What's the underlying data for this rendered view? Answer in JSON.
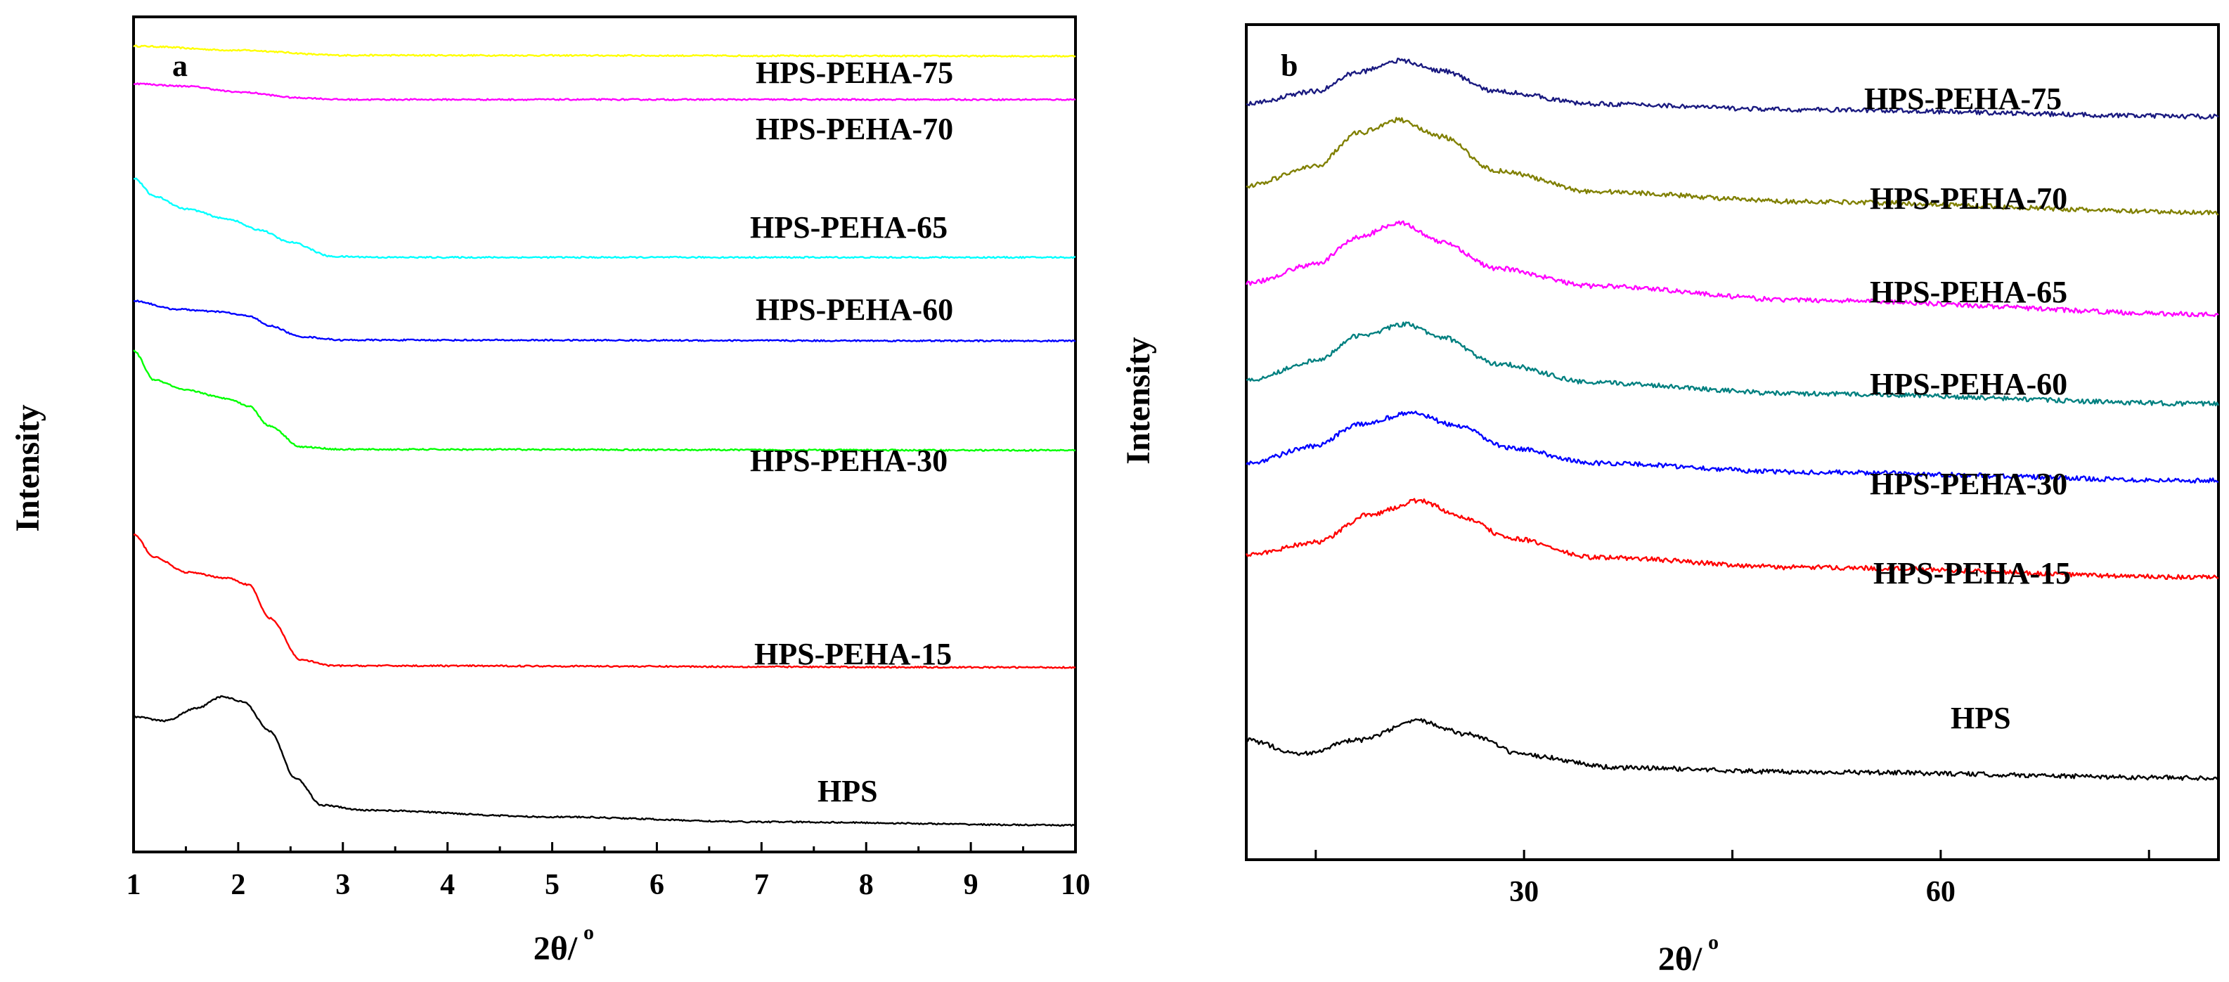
{
  "chart_data": [
    {
      "panel": "a",
      "type": "line",
      "title": "",
      "xlabel": "2θ/",
      "xlabel_sup": "o",
      "ylabel": "Intensity",
      "xlim": [
        1,
        10
      ],
      "x_ticks": [
        1,
        2,
        3,
        4,
        5,
        6,
        7,
        8,
        9,
        10
      ],
      "x_tick_labels": [
        "1",
        "2",
        "3",
        "4",
        "5",
        "6",
        "7",
        "8",
        "9",
        "10"
      ],
      "y_ticks_shown": false,
      "grid": false,
      "series": [
        {
          "name": "HPS-PEHA-75",
          "color": "#ffff00",
          "points": [
            [
              1,
              96.5
            ],
            [
              2,
              96
            ],
            [
              3,
              95.4
            ],
            [
              10,
              95.3
            ]
          ]
        },
        {
          "name": "HPS-PEHA-70",
          "color": "#ff00ff",
          "points": [
            [
              1,
              92
            ],
            [
              1.5,
              91.7
            ],
            [
              2,
              91
            ],
            [
              2.6,
              90.3
            ],
            [
              3,
              90.1
            ],
            [
              10,
              90.1
            ]
          ]
        },
        {
          "name": "HPS-PEHA-65",
          "color": "#00ffff",
          "points": [
            [
              1,
              80.7
            ],
            [
              1.2,
              78.5
            ],
            [
              1.5,
              77
            ],
            [
              1.9,
              75.8
            ],
            [
              2.2,
              74.5
            ],
            [
              2.5,
              73
            ],
            [
              2.9,
              71.3
            ],
            [
              3.5,
              71.2
            ],
            [
              10,
              71.2
            ]
          ]
        },
        {
          "name": "HPS-PEHA-60",
          "color": "#0000ff",
          "points": [
            [
              1,
              66
            ],
            [
              1.4,
              65
            ],
            [
              1.8,
              64.7
            ],
            [
              2.1,
              64.2
            ],
            [
              2.3,
              63
            ],
            [
              2.6,
              61.7
            ],
            [
              3,
              61.3
            ],
            [
              10,
              61.2
            ]
          ]
        },
        {
          "name": "HPS-PEHA-30",
          "color": "#00ff00",
          "points": [
            [
              1,
              60
            ],
            [
              1.2,
              56.5
            ],
            [
              1.5,
              55.3
            ],
            [
              1.9,
              54.3
            ],
            [
              2.1,
              53.4
            ],
            [
              2.3,
              51
            ],
            [
              2.6,
              48.5
            ],
            [
              3,
              48.2
            ],
            [
              10,
              48.1
            ]
          ]
        },
        {
          "name": "HPS-PEHA-15",
          "color": "#ff0000",
          "points": [
            [
              1,
              38
            ],
            [
              1.2,
              35.3
            ],
            [
              1.5,
              33.5
            ],
            [
              1.9,
              32.8
            ],
            [
              2.1,
              32
            ],
            [
              2.3,
              28
            ],
            [
              2.6,
              23
            ],
            [
              2.9,
              22.3
            ],
            [
              10,
              22.1
            ]
          ]
        },
        {
          "name": "HPS",
          "color": "#000000",
          "points": [
            [
              1,
              16.2
            ],
            [
              1.3,
              15.7
            ],
            [
              1.6,
              17.2
            ],
            [
              1.85,
              18.6
            ],
            [
              2.05,
              18
            ],
            [
              2.3,
              14.5
            ],
            [
              2.55,
              8.8
            ],
            [
              2.8,
              5.6
            ],
            [
              3.2,
              5
            ],
            [
              5,
              4.2
            ],
            [
              7,
              3.6
            ],
            [
              10,
              3.2
            ]
          ]
        }
      ],
      "series_labels": [
        "HPS-PEHA-75",
        "HPS-PEHA-70",
        "HPS-PEHA-65",
        "HPS-PEHA-60",
        "HPS-PEHA-30",
        "HPS-PEHA-15",
        "HPS"
      ]
    },
    {
      "panel": "b",
      "type": "line",
      "title": "",
      "xlabel": "2θ/",
      "xlabel_sup": "o",
      "ylabel": "Intensity",
      "xlim": [
        10,
        80
      ],
      "x_ticks": [
        15,
        30,
        45,
        60,
        75
      ],
      "x_tick_labels": [
        "",
        "30",
        "",
        "60",
        ""
      ],
      "y_ticks_shown": false,
      "grid": false,
      "series": [
        {
          "name": "HPS-PEHA-75",
          "color": "#1a1a80",
          "points": [
            [
              10,
              90.5
            ],
            [
              15,
              92
            ],
            [
              18,
              94.3
            ],
            [
              21,
              95.7
            ],
            [
              24,
              94.5
            ],
            [
              28,
              92
            ],
            [
              35,
              90.5
            ],
            [
              50,
              89.8
            ],
            [
              80,
              89
            ]
          ]
        },
        {
          "name": "HPS-PEHA-70",
          "color": "#808000",
          "points": [
            [
              10,
              80.7
            ],
            [
              15,
              83
            ],
            [
              18,
              87
            ],
            [
              21,
              88.6
            ],
            [
              24,
              86.6
            ],
            [
              28,
              82.5
            ],
            [
              35,
              80
            ],
            [
              50,
              78.8
            ],
            [
              80,
              77.5
            ]
          ]
        },
        {
          "name": "HPS-PEHA-65",
          "color": "#ff00ff",
          "points": [
            [
              10,
              69
            ],
            [
              15,
              71.3
            ],
            [
              18,
              74.5
            ],
            [
              21,
              76.3
            ],
            [
              24,
              74
            ],
            [
              28,
              70.8
            ],
            [
              35,
              68.7
            ],
            [
              50,
              67
            ],
            [
              80,
              65.3
            ]
          ]
        },
        {
          "name": "HPS-PEHA-60",
          "color": "#008080",
          "points": [
            [
              10,
              57.4
            ],
            [
              15,
              59.7
            ],
            [
              18,
              62.7
            ],
            [
              21.5,
              64.1
            ],
            [
              24,
              62.6
            ],
            [
              28,
              59.4
            ],
            [
              35,
              57.1
            ],
            [
              50,
              55.8
            ],
            [
              80,
              54.6
            ]
          ]
        },
        {
          "name": "HPS-PEHA-30",
          "color": "#0000ff",
          "points": [
            [
              10,
              47.5
            ],
            [
              15,
              49.5
            ],
            [
              18,
              52.1
            ],
            [
              22,
              53.5
            ],
            [
              25,
              52
            ],
            [
              29,
              49.3
            ],
            [
              35,
              47.5
            ],
            [
              50,
              46.4
            ],
            [
              80,
              45.4
            ]
          ]
        },
        {
          "name": "HPS-PEHA-15",
          "color": "#ff0000",
          "points": [
            [
              10,
              36.5
            ],
            [
              15,
              38
            ],
            [
              19,
              41.4
            ],
            [
              22.5,
              43
            ],
            [
              25.5,
              41
            ],
            [
              29,
              38.5
            ],
            [
              35,
              36.2
            ],
            [
              50,
              35
            ],
            [
              80,
              33.8
            ]
          ]
        },
        {
          "name": "HPS",
          "color": "#000000",
          "points": [
            [
              10,
              14.3
            ],
            [
              14,
              12.7
            ],
            [
              18,
              14.3
            ],
            [
              22.5,
              16.6
            ],
            [
              26,
              15
            ],
            [
              30,
              12.5
            ],
            [
              37,
              11
            ],
            [
              50,
              10.5
            ],
            [
              80,
              9.8
            ]
          ]
        }
      ],
      "series_labels": [
        "HPS-PEHA-75",
        "HPS-PEHA-70",
        "HPS-PEHA-65",
        "HPS-PEHA-60",
        "HPS-PEHA-30",
        "HPS-PEHA-15",
        "HPS"
      ]
    }
  ]
}
